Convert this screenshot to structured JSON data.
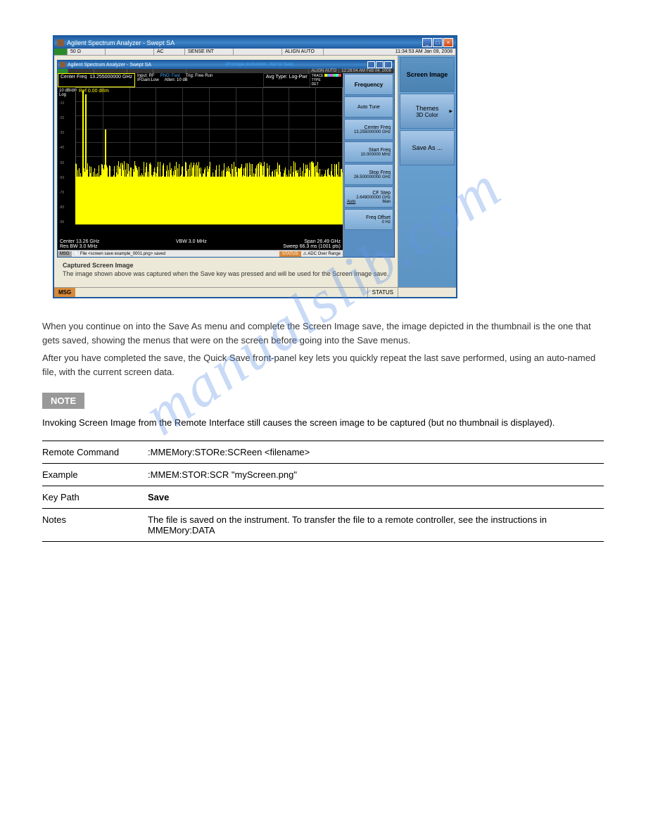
{
  "titlebar": {
    "text": "Agilent Spectrum Analyzer - Swept SA"
  },
  "status_strip": {
    "impedance": "50 Ω",
    "ac": "AC",
    "sense": "SENSE INT",
    "align": "ALIGN AUTO",
    "time": "11:34:53 AM Jan 09, 2008"
  },
  "side_panel": {
    "header": "Screen Image",
    "themes_label": "Themes",
    "themes_value": "3D Color",
    "save_as": "Save As ..."
  },
  "inner_titlebar": {
    "text": "Agilent Spectrum Analyzer - Swept SA",
    "proto": "(Prototype Instrument - Not for Sale)"
  },
  "inner_status": {
    "align": "ALIGN AUTO",
    "time": "12:28:04 AM Feb 04, 2006"
  },
  "graph_header": {
    "center_freq_label": "Center Freq",
    "center_freq_value": "13.255000000 GHz",
    "input": "Input: RF",
    "pno": "PNO: Fast",
    "ifgain": "IFGain:Low",
    "trig": "Trig: Free Run",
    "atten": "Atten: 10 dB",
    "avg": "Avg Type: Log-Pwr",
    "trace_label": "TRACE",
    "type_label": "TYPE",
    "det_label": "DET"
  },
  "freq_buttons": {
    "header": "Frequency",
    "auto_tune": "Auto Tune",
    "center_freq_label": "Center Freq",
    "center_freq_value": "13.255000000 GHz",
    "start_freq_label": "Start Freq",
    "start_freq_value": "10.000000 MHz",
    "stop_freq_label": "Stop Freq",
    "stop_freq_value": "26.500000000 GHz",
    "cf_step_label": "CF Step",
    "cf_step_value": "2.649000000 GHz",
    "auto": "Auto",
    "man": "Man",
    "freq_offset_label": "Freq Offset",
    "freq_offset_value": "0 Hz"
  },
  "graph": {
    "ref": "Ref 0.00 dBm",
    "y_top": "10 dB/div",
    "y_log": "Log",
    "y_ticks": [
      "-10",
      "-20",
      "-30",
      "-40",
      "-50",
      "-60",
      "-70",
      "-80",
      "-90"
    ],
    "footer_center": "Center 13.26 GHz",
    "footer_span": "Span 26.49 GHz",
    "footer_resbw": "Res BW 3.0 MHz",
    "footer_vbw": "VBW 3.0 MHz",
    "footer_sweep": "Sweep   66.3 ms (1001 pts)"
  },
  "msg_bar": {
    "msg_label": "MSG",
    "msg_icon": "📄",
    "msg_text": "File <screen save example_0001.png> saved",
    "status_label": "STATUS",
    "status_text": "⚠ ADC Over Range"
  },
  "caption": {
    "title": "Captured Screen Image",
    "text": "The image shown above was captured when the Save key was pressed and will be used for the Screen Image save."
  },
  "bottom_bar": {
    "msg": "MSG",
    "status": "STATUS"
  },
  "body_text": {
    "p1": "When you continue on into the Save As menu and complete the Screen Image save, the image depicted in the thumbnail is the one that gets saved, showing the menus that were on the screen before going into the Save menus.",
    "p2": "After you have completed the save, the Quick Save front-panel key lets you quickly repeat the last save performed, using an auto-named file, with the current screen data."
  },
  "note": {
    "label": "NOTE",
    "text": "Invoking Screen Image from the Remote Interface still causes the screen image to be captured (but no thumbnail is displayed)."
  },
  "cmd": {
    "remote_label": "Remote Command",
    "remote_value": ":MMEMory:STORe:SCReen <filename>",
    "example_label": "Example",
    "example_value": ":MMEM:STOR:SCR \"myScreen.png\"",
    "key_path_label": "Key Path",
    "key_path_value": "Save",
    "notes_label": "Notes",
    "notes_value": "The file is saved on the instrument. To transfer the file to a remote controller, see the instructions in MMEMory:DATA"
  },
  "watermark": "manualslib.com",
  "colors": {
    "window_chrome": "#1e5aa0",
    "window_bg": "#ece9d8",
    "spectrum": "#ff0",
    "graph_bg": "#000",
    "side_panel_grad_top": "#6fa8d8",
    "side_panel_grad_bot": "#5c94c4",
    "btn_grad_top": "#a8c8e8",
    "btn_grad_bot": "#7baad4",
    "msg_bg": "#d88a3a",
    "note_bg": "#999"
  }
}
